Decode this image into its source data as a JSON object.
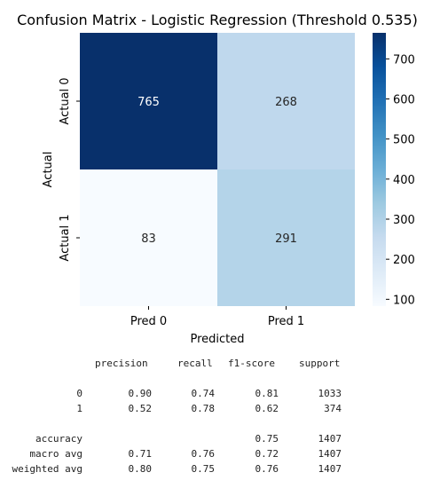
{
  "chart_data": {
    "type": "heatmap",
    "title": "Confusion Matrix - Logistic Regression (Threshold 0.535)",
    "xlabel": "Predicted",
    "ylabel": "Actual",
    "x_categories": [
      "Pred 0",
      "Pred 1"
    ],
    "y_categories": [
      "Actual 0",
      "Actual 1"
    ],
    "values": [
      [
        765,
        268
      ],
      [
        83,
        291
      ]
    ],
    "colormap": "Blues",
    "colorbar": {
      "range": [
        83,
        765
      ],
      "ticks": [
        100,
        200,
        300,
        400,
        500,
        600,
        700
      ],
      "colors": [
        "#f7fbff",
        "#deebf7",
        "#c6dbef",
        "#9ecae1",
        "#6baed6",
        "#4292c6",
        "#2171b5",
        "#08519c",
        "#08306b"
      ]
    }
  },
  "report": {
    "headers": [
      "precision",
      "recall",
      "f1-score",
      "support"
    ],
    "rows": [
      {
        "label": "0",
        "precision": "0.90",
        "recall": "0.74",
        "f1": "0.81",
        "support": "1033"
      },
      {
        "label": "1",
        "precision": "0.52",
        "recall": "0.78",
        "f1": "0.62",
        "support": "374"
      },
      {
        "label": "accuracy",
        "precision": "",
        "recall": "",
        "f1": "0.75",
        "support": "1407"
      },
      {
        "label": "macro avg",
        "precision": "0.71",
        "recall": "0.76",
        "f1": "0.72",
        "support": "1407"
      },
      {
        "label": "weighted avg",
        "precision": "0.80",
        "recall": "0.75",
        "f1": "0.76",
        "support": "1407"
      }
    ]
  }
}
